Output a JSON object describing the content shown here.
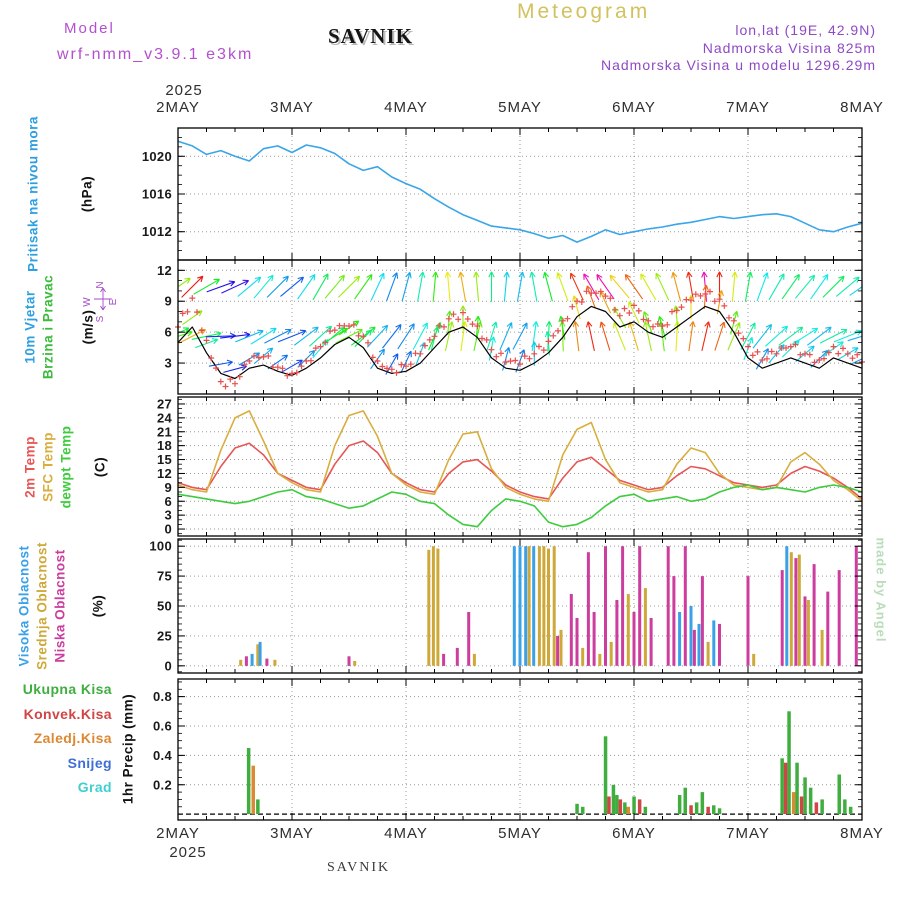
{
  "header": {
    "watermark": "Meteogram",
    "model_label": "Model",
    "station": "SAVNIK",
    "model_name": "wrf-nmm_v3.9.1 e3km",
    "lonlat": "lon,lat (19E, 42.9N)",
    "elevation": "Nadmorska Visina 825m",
    "model_elevation": "Nadmorska Visina u modelu 1296.29m",
    "credit": "made by Angel",
    "credit_color": "#b9dcb9",
    "compass": {
      "n": "N",
      "e": "E",
      "s": "S",
      "w": "W"
    },
    "compass_color": "#a44bc8"
  },
  "axis": {
    "year": "2025",
    "days": [
      "2MAY",
      "3MAY",
      "4MAY",
      "5MAY",
      "6MAY",
      "7MAY",
      "8MAY"
    ],
    "t_start": 2,
    "t_end": 8
  },
  "chart_data": [
    {
      "id": "pressure",
      "type": "line",
      "label": "Pritisak na nivou mora",
      "label_color": "#2e9fe0",
      "unit": "(hPa)",
      "ylim": [
        1009,
        1023
      ],
      "yticks": [
        1012,
        1016,
        1020
      ],
      "yminor": 1,
      "x_step": 0.125,
      "series": [
        {
          "name": "mslp",
          "color": "#3aa5e8",
          "values": [
            1021.6,
            1021.1,
            1020.2,
            1020.6,
            1020.0,
            1019.5,
            1020.8,
            1021.1,
            1020.4,
            1021.2,
            1020.9,
            1020.3,
            1019.2,
            1018.5,
            1018.9,
            1017.8,
            1017.1,
            1016.5,
            1015.5,
            1014.6,
            1013.8,
            1013.2,
            1012.6,
            1012.4,
            1012.2,
            1011.8,
            1011.3,
            1011.6,
            1010.9,
            1011.5,
            1012.2,
            1011.7,
            1012.0,
            1012.3,
            1012.5,
            1012.8,
            1013.0,
            1013.3,
            1013.6,
            1013.4,
            1013.6,
            1013.8,
            1013.9,
            1013.6,
            1012.9,
            1012.2,
            1012.0,
            1012.5,
            1012.9
          ]
        }
      ]
    },
    {
      "id": "wind",
      "type": "line+arrows",
      "labels": [
        "10m Vjetar",
        "Brzina i Pravac"
      ],
      "label_colors": [
        "#2e9fe0",
        "#3dbb3d"
      ],
      "unit": "(m/s)",
      "ylim": [
        0,
        13
      ],
      "yticks": [
        3,
        6,
        9,
        12
      ],
      "yminor": 1,
      "x_step": 0.125,
      "speed_color": "#000000",
      "gust_color": "#e85050",
      "speed": [
        5.0,
        6.5,
        4.0,
        2.0,
        1.5,
        2.5,
        2.8,
        2.2,
        1.8,
        2.5,
        3.5,
        4.8,
        5.5,
        4.5,
        2.5,
        2.0,
        2.2,
        3.0,
        4.5,
        6.0,
        6.5,
        5.5,
        3.5,
        2.5,
        2.3,
        3.0,
        4.0,
        5.5,
        7.5,
        8.5,
        8.0,
        6.5,
        7.0,
        6.0,
        5.5,
        6.5,
        7.5,
        8.5,
        8.0,
        6.0,
        3.5,
        2.5,
        3.0,
        3.5,
        3.0,
        2.5,
        3.5,
        3.0,
        2.5
      ],
      "gust": [
        6.5,
        9.3,
        5.2,
        1.2,
        1.0,
        3.2,
        3.6,
        2.6,
        2.0,
        3.2,
        4.6,
        6.2,
        6.6,
        5.6,
        3.2,
        2.4,
        2.7,
        3.9,
        5.6,
        7.3,
        7.9,
        6.6,
        4.3,
        3.1,
        2.9,
        3.9,
        5.1,
        7.1,
        9.0,
        9.8,
        9.5,
        7.6,
        8.6,
        7.1,
        6.6,
        8.1,
        9.1,
        9.7,
        9.2,
        7.1,
        4.6,
        3.3,
        3.9,
        4.6,
        3.9,
        3.3,
        4.6,
        3.9,
        3.1
      ],
      "dir": [
        25,
        35,
        20,
        10,
        15,
        30,
        40,
        35,
        30,
        45,
        50,
        40,
        35,
        45,
        55,
        60,
        65,
        70,
        75,
        85,
        90,
        85,
        80,
        75,
        70,
        90,
        95,
        100,
        105,
        110,
        115,
        120,
        115,
        110,
        105,
        95,
        90,
        85,
        80,
        75,
        70,
        60,
        50,
        45,
        40,
        45,
        35,
        30,
        25
      ]
    },
    {
      "id": "temperature",
      "type": "line",
      "unit": "(C)",
      "ylim": [
        -1.5,
        28.5
      ],
      "yticks": [
        0,
        3,
        6,
        9,
        12,
        15,
        18,
        21,
        24,
        27
      ],
      "yminor": 1,
      "x_step": 0.125,
      "series": [
        {
          "name": "2m Temp",
          "color": "#e85555",
          "values": [
            10.0,
            9.0,
            8.5,
            13.5,
            17.5,
            18.5,
            16.0,
            12.0,
            10.5,
            9.0,
            8.5,
            14.0,
            18.0,
            19.0,
            16.5,
            12.0,
            10.0,
            8.5,
            8.0,
            12.0,
            14.5,
            15.0,
            12.5,
            9.5,
            8.0,
            7.0,
            6.5,
            11.0,
            14.5,
            15.5,
            13.0,
            10.5,
            9.5,
            8.5,
            9.0,
            11.5,
            13.5,
            13.0,
            11.5,
            10.0,
            9.5,
            9.0,
            9.5,
            12.0,
            13.5,
            12.5,
            11.0,
            9.0,
            6.5
          ]
        },
        {
          "name": "SFC Temp",
          "color": "#d9ae3f",
          "values": [
            9.5,
            8.5,
            8.0,
            17.0,
            24.0,
            25.5,
            19.0,
            12.0,
            10.0,
            8.5,
            8.0,
            18.0,
            24.5,
            25.5,
            20.0,
            12.0,
            9.5,
            8.0,
            7.5,
            15.0,
            20.5,
            21.0,
            13.0,
            9.0,
            7.5,
            6.5,
            6.0,
            16.0,
            21.5,
            23.0,
            15.0,
            10.0,
            9.0,
            8.0,
            8.5,
            14.0,
            17.5,
            16.5,
            12.0,
            9.5,
            9.0,
            8.5,
            9.0,
            14.5,
            16.5,
            14.0,
            10.5,
            8.5,
            6.0
          ]
        },
        {
          "name": "dewpt Temp",
          "color": "#3ecc3e",
          "values": [
            7.5,
            7.0,
            6.5,
            6.0,
            5.5,
            6.0,
            7.0,
            8.0,
            8.5,
            7.0,
            6.5,
            5.5,
            4.5,
            5.0,
            6.5,
            8.0,
            7.5,
            6.0,
            5.5,
            3.0,
            1.0,
            0.5,
            4.0,
            6.5,
            6.0,
            5.0,
            1.5,
            0.5,
            1.0,
            2.5,
            5.0,
            7.0,
            7.5,
            6.0,
            6.5,
            7.0,
            6.0,
            6.5,
            8.0,
            9.0,
            9.5,
            8.5,
            9.0,
            8.5,
            8.0,
            9.0,
            9.5,
            9.0,
            8.0
          ]
        }
      ]
    },
    {
      "id": "cloud",
      "type": "bar",
      "unit": "(%)",
      "ylim": [
        -6,
        106
      ],
      "yticks": [
        0,
        25,
        50,
        75,
        100
      ],
      "yminor": 5,
      "series_meta": [
        {
          "name": "Visoka Oblacnost",
          "color": "#3aa0e8"
        },
        {
          "name": "Srednja Oblacnost",
          "color": "#cfa83a"
        },
        {
          "name": "Niska Oblacnost",
          "color": "#cc3d9e"
        }
      ],
      "bars": [
        [
          2.55,
          1,
          5
        ],
        [
          2.6,
          2,
          8
        ],
        [
          2.65,
          0,
          10
        ],
        [
          2.7,
          1,
          18
        ],
        [
          2.72,
          0,
          20
        ],
        [
          2.78,
          2,
          6
        ],
        [
          2.85,
          1,
          5
        ],
        [
          3.5,
          2,
          8
        ],
        [
          3.55,
          1,
          4
        ],
        [
          4.2,
          1,
          97
        ],
        [
          4.24,
          1,
          100
        ],
        [
          4.28,
          1,
          98
        ],
        [
          4.33,
          2,
          10
        ],
        [
          4.45,
          2,
          15
        ],
        [
          4.55,
          2,
          45
        ],
        [
          4.6,
          1,
          10
        ],
        [
          4.95,
          0,
          100
        ],
        [
          5.0,
          0,
          100
        ],
        [
          5.05,
          0,
          100
        ],
        [
          5.08,
          1,
          100
        ],
        [
          5.12,
          0,
          100
        ],
        [
          5.17,
          1,
          100
        ],
        [
          5.21,
          1,
          100
        ],
        [
          5.25,
          1,
          98
        ],
        [
          5.3,
          1,
          100
        ],
        [
          5.33,
          2,
          25
        ],
        [
          5.36,
          1,
          30
        ],
        [
          5.45,
          2,
          60
        ],
        [
          5.5,
          2,
          40
        ],
        [
          5.55,
          1,
          15
        ],
        [
          5.6,
          2,
          95
        ],
        [
          5.65,
          2,
          45
        ],
        [
          5.7,
          1,
          10
        ],
        [
          5.75,
          2,
          100
        ],
        [
          5.8,
          1,
          20
        ],
        [
          5.85,
          2,
          55
        ],
        [
          5.9,
          2,
          100
        ],
        [
          5.95,
          1,
          60
        ],
        [
          6.0,
          2,
          45
        ],
        [
          6.05,
          2,
          100
        ],
        [
          6.1,
          1,
          65
        ],
        [
          6.15,
          2,
          40
        ],
        [
          6.3,
          2,
          100
        ],
        [
          6.35,
          2,
          75
        ],
        [
          6.4,
          0,
          45
        ],
        [
          6.45,
          2,
          100
        ],
        [
          6.5,
          0,
          50
        ],
        [
          6.53,
          2,
          30
        ],
        [
          6.57,
          0,
          35
        ],
        [
          6.6,
          2,
          75
        ],
        [
          6.65,
          1,
          20
        ],
        [
          6.7,
          0,
          38
        ],
        [
          6.75,
          2,
          35
        ],
        [
          7.0,
          2,
          75
        ],
        [
          7.05,
          1,
          10
        ],
        [
          7.3,
          2,
          80
        ],
        [
          7.34,
          0,
          100
        ],
        [
          7.38,
          1,
          95
        ],
        [
          7.42,
          2,
          90
        ],
        [
          7.45,
          1,
          93
        ],
        [
          7.5,
          2,
          58
        ],
        [
          7.53,
          1,
          55
        ],
        [
          7.58,
          2,
          85
        ],
        [
          7.65,
          1,
          30
        ],
        [
          7.7,
          2,
          62
        ],
        [
          7.8,
          2,
          80
        ],
        [
          7.95,
          2,
          100
        ]
      ]
    },
    {
      "id": "precip",
      "type": "bar",
      "unit": "1hr Precip (mm)",
      "ylim": [
        -0.04,
        0.92
      ],
      "yticks": [
        0.2,
        0.4,
        0.6,
        0.8
      ],
      "ytick_labels": [
        "0.2",
        "0.4",
        "0.6",
        "0.8"
      ],
      "yminor": 0.05,
      "series_meta": [
        {
          "name": "Ukupna Kisa",
          "color": "#3fae3f"
        },
        {
          "name": "Konvek.Kisa",
          "color": "#d04545"
        },
        {
          "name": "Zaledj.Kisa",
          "color": "#dd8833"
        },
        {
          "name": "Snijeg",
          "color": "#3f6fd6"
        },
        {
          "name": "Grad",
          "color": "#3fcfcf"
        }
      ],
      "bars": [
        [
          2.62,
          0,
          0.45
        ],
        [
          2.66,
          2,
          0.33
        ],
        [
          2.7,
          0,
          0.1
        ],
        [
          5.5,
          0,
          0.07
        ],
        [
          5.55,
          0,
          0.05
        ],
        [
          5.75,
          0,
          0.53
        ],
        [
          5.78,
          1,
          0.12
        ],
        [
          5.82,
          0,
          0.2
        ],
        [
          5.85,
          0,
          0.13
        ],
        [
          5.88,
          1,
          0.1
        ],
        [
          5.92,
          0,
          0.08
        ],
        [
          5.95,
          2,
          0.05
        ],
        [
          6.0,
          0,
          0.12
        ],
        [
          6.05,
          1,
          0.1
        ],
        [
          6.1,
          0,
          0.05
        ],
        [
          6.4,
          0,
          0.13
        ],
        [
          6.45,
          0,
          0.18
        ],
        [
          6.5,
          1,
          0.06
        ],
        [
          6.55,
          0,
          0.08
        ],
        [
          6.6,
          0,
          0.15
        ],
        [
          6.65,
          1,
          0.05
        ],
        [
          6.7,
          0,
          0.06
        ],
        [
          6.75,
          0,
          0.04
        ],
        [
          7.3,
          0,
          0.38
        ],
        [
          7.33,
          1,
          0.35
        ],
        [
          7.36,
          0,
          0.7
        ],
        [
          7.4,
          2,
          0.15
        ],
        [
          7.43,
          0,
          0.35
        ],
        [
          7.47,
          1,
          0.12
        ],
        [
          7.5,
          0,
          0.25
        ],
        [
          7.55,
          0,
          0.18
        ],
        [
          7.6,
          1,
          0.08
        ],
        [
          7.65,
          0,
          0.1
        ],
        [
          7.8,
          0,
          0.27
        ],
        [
          7.85,
          0,
          0.1
        ],
        [
          7.9,
          0,
          0.05
        ]
      ]
    }
  ]
}
